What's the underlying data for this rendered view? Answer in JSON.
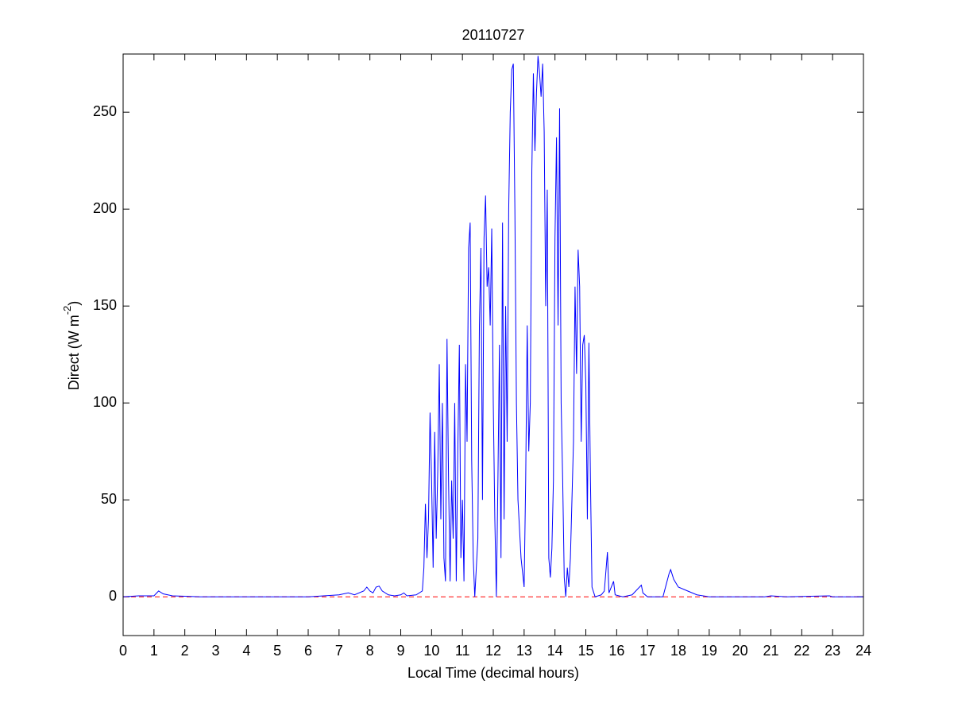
{
  "chart_data": {
    "type": "line",
    "title": "20110727",
    "xlabel": "Local Time (decimal hours)",
    "ylabel": {
      "text": "Direct (W m",
      "sup": "-2",
      "end": ")"
    },
    "xlim": [
      0,
      24
    ],
    "ylim": [
      -20,
      280
    ],
    "xticks": [
      0,
      1,
      2,
      3,
      4,
      5,
      6,
      7,
      8,
      9,
      10,
      11,
      12,
      13,
      14,
      15,
      16,
      17,
      18,
      19,
      20,
      21,
      22,
      23,
      24
    ],
    "yticks": [
      0,
      50,
      100,
      150,
      200,
      250
    ],
    "hline": {
      "value": 0,
      "color": "#ff0000",
      "style": "dashed"
    },
    "series": [
      {
        "color": "#0000ff",
        "x": [
          0,
          0.5,
          1.0,
          1.15,
          1.3,
          1.6,
          2,
          2.5,
          3,
          6,
          6.5,
          7,
          7.3,
          7.5,
          7.8,
          7.9,
          8.0,
          8.1,
          8.2,
          8.3,
          8.4,
          8.6,
          8.8,
          9.0,
          9.1,
          9.2,
          9.5,
          9.7,
          9.75,
          9.8,
          9.85,
          9.9,
          9.95,
          10.0,
          10.05,
          10.1,
          10.15,
          10.2,
          10.25,
          10.3,
          10.35,
          10.4,
          10.45,
          10.5,
          10.55,
          10.6,
          10.65,
          10.7,
          10.75,
          10.8,
          10.85,
          10.9,
          10.95,
          11.0,
          11.05,
          11.1,
          11.15,
          11.2,
          11.25,
          11.3,
          11.35,
          11.4,
          11.5,
          11.55,
          11.6,
          11.65,
          11.7,
          11.75,
          11.8,
          11.85,
          11.9,
          11.95,
          12.0,
          12.05,
          12.1,
          12.15,
          12.2,
          12.25,
          12.3,
          12.35,
          12.4,
          12.45,
          12.5,
          12.55,
          12.6,
          12.65,
          12.7,
          12.75,
          12.8,
          12.9,
          13.0,
          13.05,
          13.1,
          13.15,
          13.2,
          13.25,
          13.3,
          13.35,
          13.4,
          13.45,
          13.5,
          13.55,
          13.6,
          13.65,
          13.7,
          13.75,
          13.8,
          13.85,
          13.9,
          13.95,
          14.0,
          14.05,
          14.1,
          14.15,
          14.2,
          14.25,
          14.3,
          14.35,
          14.4,
          14.45,
          14.5,
          14.55,
          14.6,
          14.65,
          14.7,
          14.75,
          14.8,
          14.85,
          14.9,
          14.95,
          15.0,
          15.05,
          15.1,
          15.15,
          15.2,
          15.3,
          15.5,
          15.6,
          15.7,
          15.75,
          15.9,
          15.95,
          16.2,
          16.5,
          16.8,
          16.85,
          17.0,
          17.5,
          17.6,
          17.7,
          17.75,
          17.85,
          18.0,
          18.3,
          18.6,
          19.0,
          20.8,
          21,
          21.5,
          22.9,
          23,
          24
        ],
        "values": [
          0,
          0.5,
          0.5,
          3,
          1.5,
          0.5,
          0.3,
          0,
          0,
          0,
          0.5,
          1,
          2,
          1,
          3,
          5,
          3,
          2,
          5,
          5.5,
          3,
          1,
          0.5,
          1,
          2,
          0.5,
          1,
          3,
          15,
          48,
          20,
          40,
          95,
          60,
          15,
          85,
          30,
          65,
          120,
          40,
          100,
          20,
          8,
          133,
          60,
          8,
          60,
          30,
          100,
          8,
          75,
          130,
          20,
          50,
          8,
          120,
          80,
          180,
          193,
          70,
          20,
          0,
          30,
          140,
          180,
          50,
          185,
          207,
          160,
          170,
          140,
          190,
          100,
          40,
          0,
          60,
          130,
          20,
          193,
          40,
          150,
          80,
          200,
          250,
          272,
          275,
          200,
          100,
          50,
          20,
          5,
          60,
          140,
          75,
          100,
          220,
          270,
          230,
          260,
          279,
          270,
          258,
          275,
          240,
          150,
          210,
          20,
          10,
          25,
          60,
          185,
          237,
          140,
          252,
          100,
          60,
          10,
          0,
          15,
          5,
          20,
          50,
          80,
          160,
          115,
          179,
          160,
          80,
          130,
          135,
          110,
          40,
          131,
          60,
          5,
          0,
          1,
          3,
          23,
          2,
          8,
          1,
          0,
          1,
          6,
          2,
          0,
          0,
          6,
          12,
          14,
          9,
          5,
          3,
          1,
          0,
          0,
          0.5,
          0,
          0.5,
          0,
          0
        ]
      }
    ]
  }
}
